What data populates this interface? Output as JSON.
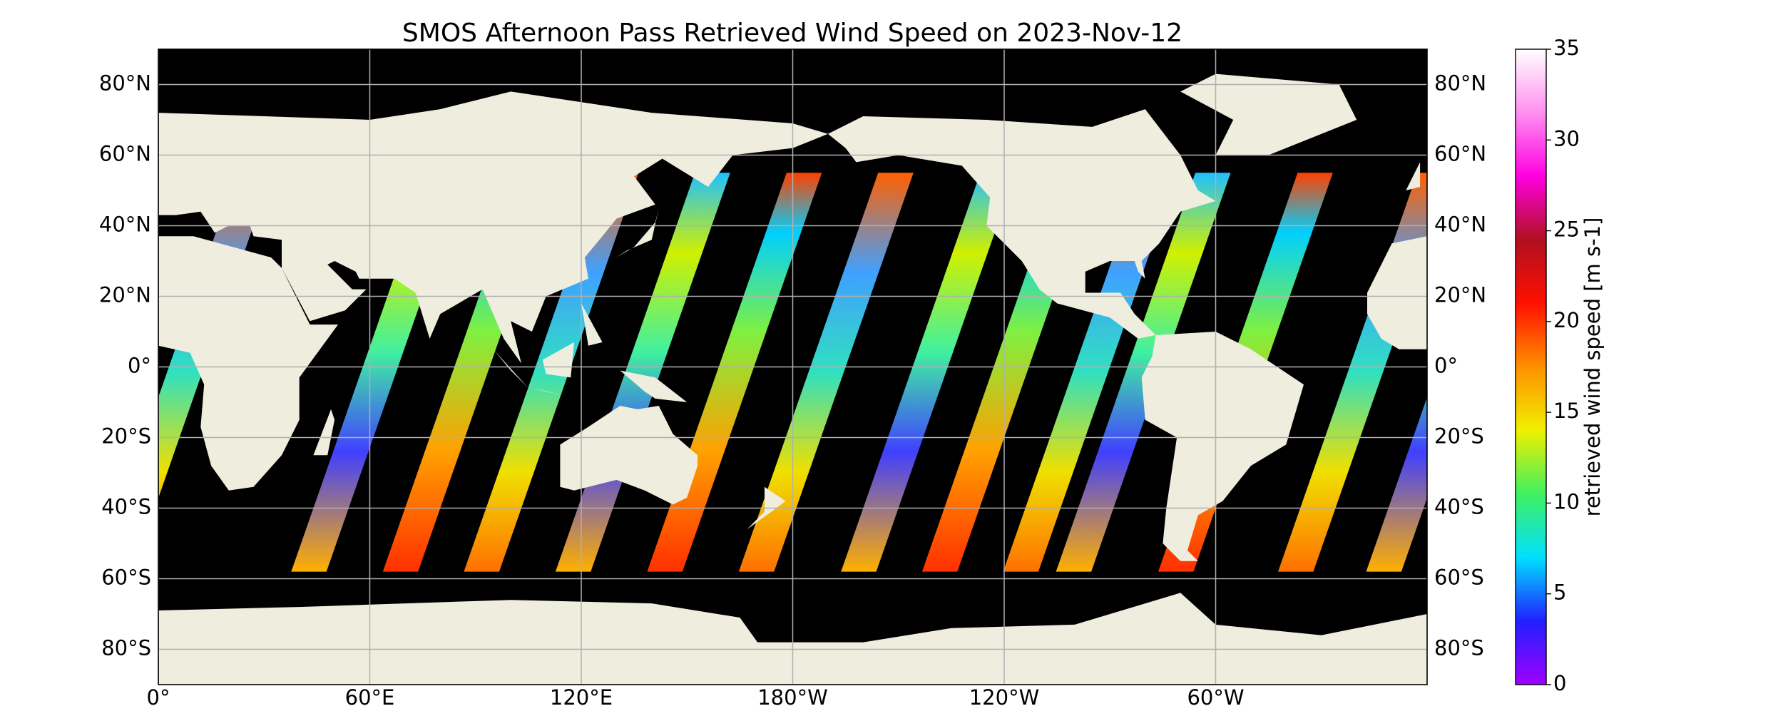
{
  "title": "SMOS Afternoon Pass Retrieved Wind Speed on 2023-Nov-12",
  "map": {
    "lon_lim": [
      0,
      360
    ],
    "lat_lim": [
      -90,
      90
    ],
    "grid": true,
    "lat_ticks": [
      {
        "value": 80,
        "label": "80°N"
      },
      {
        "value": 60,
        "label": "60°N"
      },
      {
        "value": 40,
        "label": "40°N"
      },
      {
        "value": 20,
        "label": "20°N"
      },
      {
        "value": 0,
        "label": "0°"
      },
      {
        "value": -20,
        "label": "20°S"
      },
      {
        "value": -40,
        "label": "40°S"
      },
      {
        "value": -60,
        "label": "60°S"
      },
      {
        "value": -80,
        "label": "80°S"
      }
    ],
    "lon_ticks": [
      {
        "value": 0,
        "label": "0°"
      },
      {
        "value": 60,
        "label": "60°E"
      },
      {
        "value": 120,
        "label": "120°E"
      },
      {
        "value": 180,
        "label": "180°W"
      },
      {
        "value": 240,
        "label": "120°W"
      },
      {
        "value": 300,
        "label": "60°W"
      }
    ]
  },
  "colorbar": {
    "label": "retrieved wind speed [m s-1]",
    "lim": [
      0,
      35
    ],
    "ticks": [
      0,
      5,
      10,
      15,
      20,
      25,
      30,
      35
    ],
    "colormap": [
      "#a000ff",
      "#2020ff",
      "#00e0ff",
      "#40f060",
      "#f0f000",
      "#ff9000",
      "#ff1000",
      "#b01020",
      "#ff00e0",
      "#ff90f0",
      "#ffffff"
    ]
  }
}
